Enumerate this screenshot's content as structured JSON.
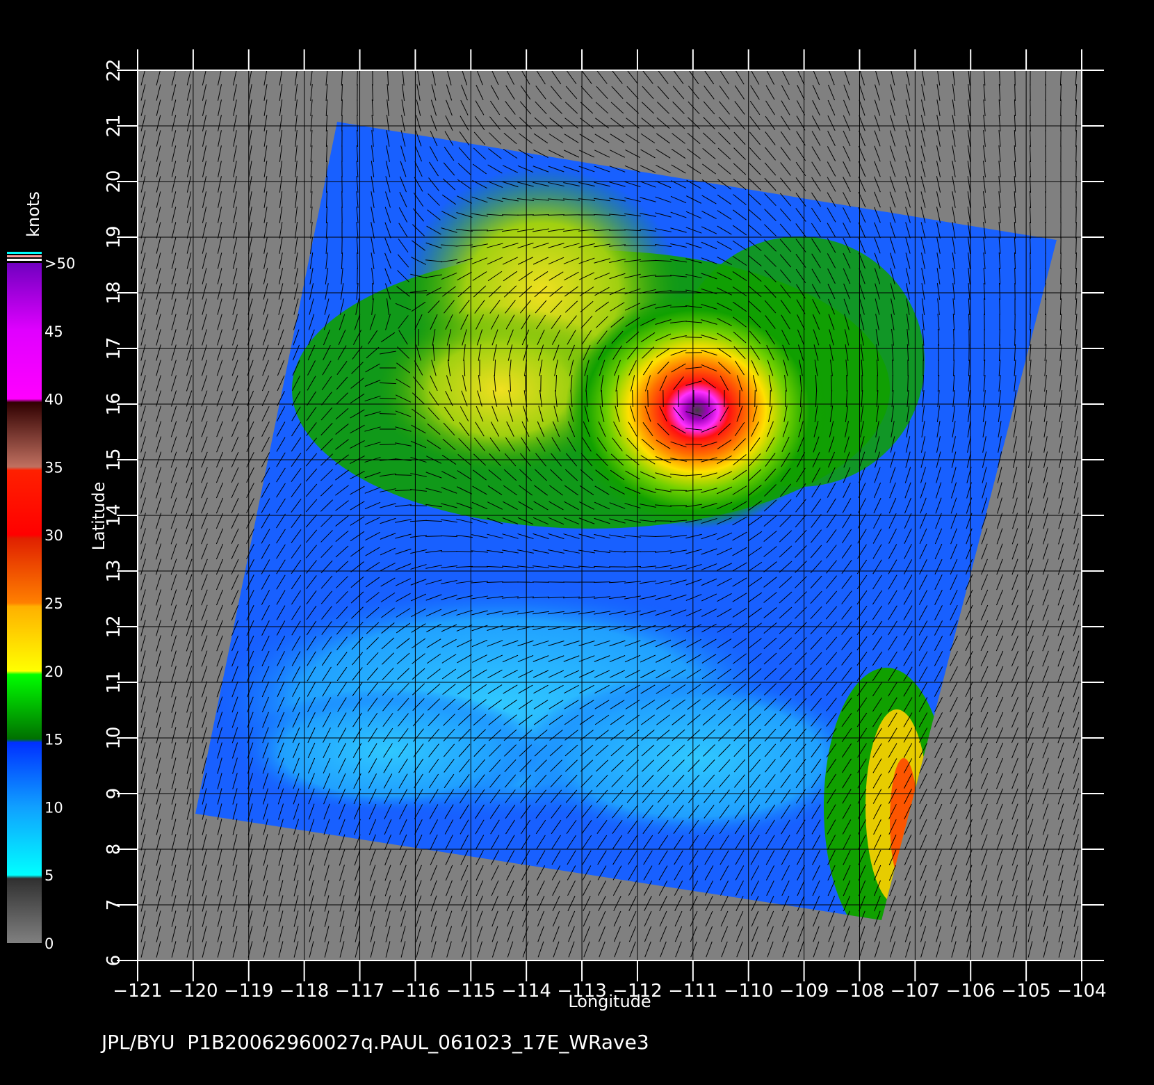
{
  "caption": "JPL/BYU  P1B20062960027q.PAUL_061023_17E_WRave3",
  "axes": {
    "xlabel": "Longitude",
    "ylabel": "Latitude",
    "xticks": [
      "−121",
      "−120",
      "−119",
      "−118",
      "−117",
      "−116",
      "−115",
      "−114",
      "−113",
      "−112",
      "−111",
      "−110",
      "−109",
      "−108",
      "−107",
      "−106",
      "−105",
      "−104"
    ],
    "yticks": [
      "6",
      "7",
      "8",
      "9",
      "10",
      "11",
      "12",
      "13",
      "14",
      "15",
      "16",
      "17",
      "18",
      "19",
      "20",
      "21",
      "22"
    ],
    "lon_range": [
      -121,
      -104
    ],
    "lat_range": [
      6,
      22
    ]
  },
  "colorbar": {
    "title": "knots",
    "labels": [
      "0",
      "5",
      "10",
      "15",
      "20",
      "25",
      "30",
      "35",
      "40",
      "45",
      ">50"
    ],
    "colors": {
      "gray": "#808080",
      "cyan": "#00ffff",
      "blue": "#0050ff",
      "green": "#00c000",
      "yellow": "#ffff00",
      "orange": "#ff8000",
      "red": "#ff0000",
      "brown": "#a05030",
      "magenta": "#ff00ff",
      "violet": "#7000c0"
    }
  },
  "storm": {
    "name": "PAUL",
    "center_lon": -110.9,
    "center_lat": 16.1
  },
  "land_color": "#808080"
}
